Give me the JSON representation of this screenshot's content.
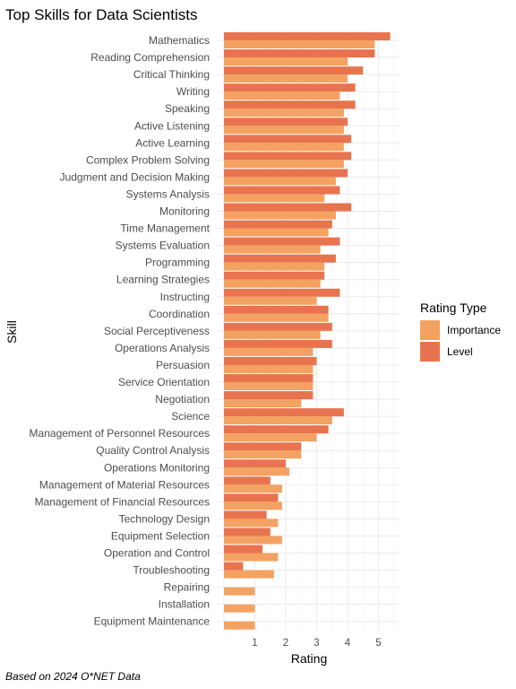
{
  "chart_data": {
    "type": "bar",
    "orientation": "horizontal",
    "title": "Top Skills for Data Scientists",
    "xlabel": "Rating",
    "ylabel": "Skill",
    "caption": "Based on 2024 O*NET Data",
    "xlim": [
      0,
      5.5
    ],
    "xticks": [
      1,
      2,
      3,
      4,
      5
    ],
    "grid": true,
    "legend": {
      "title": "Rating Type",
      "placement": "right"
    },
    "categories": [
      "Mathematics",
      "Reading Comprehension",
      "Critical Thinking",
      "Writing",
      "Speaking",
      "Active Listening",
      "Active Learning",
      "Complex Problem Solving",
      "Judgment and Decision Making",
      "Systems Analysis",
      "Monitoring",
      "Time Management",
      "Systems Evaluation",
      "Programming",
      "Learning Strategies",
      "Instructing",
      "Coordination",
      "Social Perceptiveness",
      "Operations Analysis",
      "Persuasion",
      "Service Orientation",
      "Negotiation",
      "Science",
      "Management of Personnel Resources",
      "Quality Control Analysis",
      "Operations Monitoring",
      "Management of Material Resources",
      "Management of Financial Resources",
      "Technology Design",
      "Equipment Selection",
      "Operation and Control",
      "Troubleshooting",
      "Repairing",
      "Installation",
      "Equipment Maintenance"
    ],
    "series": [
      {
        "name": "Level",
        "color": "#e8744f",
        "values": [
          5.38,
          4.88,
          4.5,
          4.25,
          4.25,
          4.0,
          4.12,
          4.12,
          4.0,
          3.75,
          4.12,
          3.5,
          3.75,
          3.62,
          3.25,
          3.75,
          3.38,
          3.5,
          3.5,
          3.0,
          2.88,
          2.88,
          3.88,
          3.38,
          2.5,
          2.0,
          1.5,
          1.75,
          1.38,
          1.5,
          1.25,
          0.62,
          0,
          0,
          0
        ]
      },
      {
        "name": "Importance",
        "color": "#f4a261",
        "values": [
          4.88,
          4.0,
          4.0,
          3.75,
          3.88,
          3.88,
          3.88,
          3.88,
          3.62,
          3.25,
          3.62,
          3.38,
          3.12,
          3.25,
          3.12,
          3.0,
          3.38,
          3.12,
          2.88,
          2.88,
          2.88,
          2.5,
          3.5,
          3.0,
          2.5,
          2.12,
          1.88,
          1.88,
          1.75,
          1.88,
          1.75,
          1.62,
          1.0,
          1.0,
          1.0
        ]
      }
    ]
  }
}
